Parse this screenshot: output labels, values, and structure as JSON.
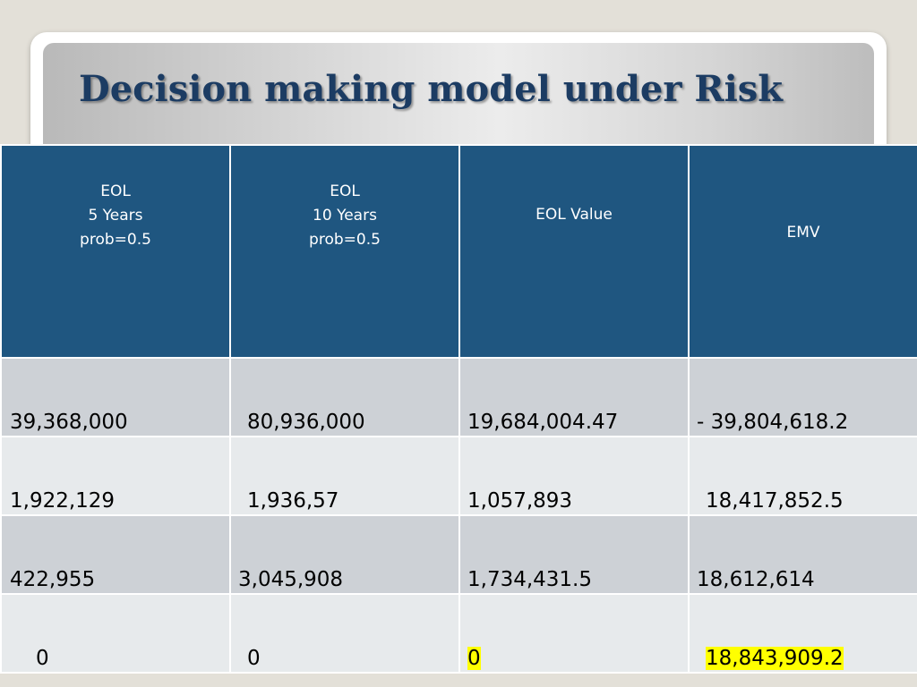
{
  "slide": {
    "title": "Decision making model under Risk"
  },
  "table": {
    "headers": [
      {
        "lines": [
          "EOL",
          "5 Years",
          "prob=0.5"
        ]
      },
      {
        "lines": [
          "EOL",
          "10 Years",
          "prob=0.5"
        ]
      },
      {
        "lines": [
          "EOL Value"
        ]
      },
      {
        "lines": [
          "EMV"
        ]
      }
    ],
    "rows": [
      [
        "39,368,000",
        "80,936,000",
        "19,684,004.47",
        "- 39,804,618.2"
      ],
      [
        "1,922,129",
        "1,936,57",
        "1,057,893",
        "18,417,852.5"
      ],
      [
        "422,955",
        "3,045,908",
        "1,734,431.5",
        "18,612,614"
      ],
      [
        "0",
        "0",
        "0",
        "18,843,909.2"
      ]
    ],
    "highlighted_cells": [
      "3.2",
      "3.3"
    ],
    "highlight_color": "#ffff00",
    "header_color": "#1f5680"
  }
}
